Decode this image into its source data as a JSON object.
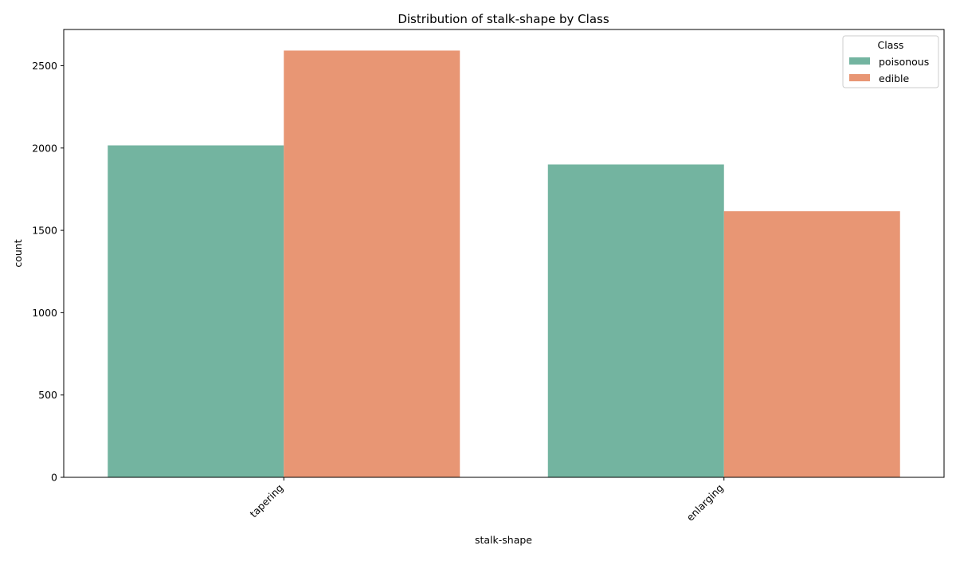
{
  "chart_data": {
    "type": "bar",
    "title": "Distribution of stalk-shape by Class",
    "xlabel": "stalk-shape",
    "ylabel": "count",
    "categories": [
      "tapering",
      "enlarging"
    ],
    "series": [
      {
        "name": "poisonous",
        "color": "#73b4a0",
        "values": [
          2016,
          1900
        ]
      },
      {
        "name": "edible",
        "color": "#e89674",
        "values": [
          2592,
          1616
        ]
      }
    ],
    "ylim": [
      0,
      2720
    ],
    "yticks": [
      0,
      500,
      1000,
      1500,
      2000,
      2500
    ],
    "legend": {
      "title": "Class",
      "placement": "top-right"
    },
    "grid": false
  }
}
